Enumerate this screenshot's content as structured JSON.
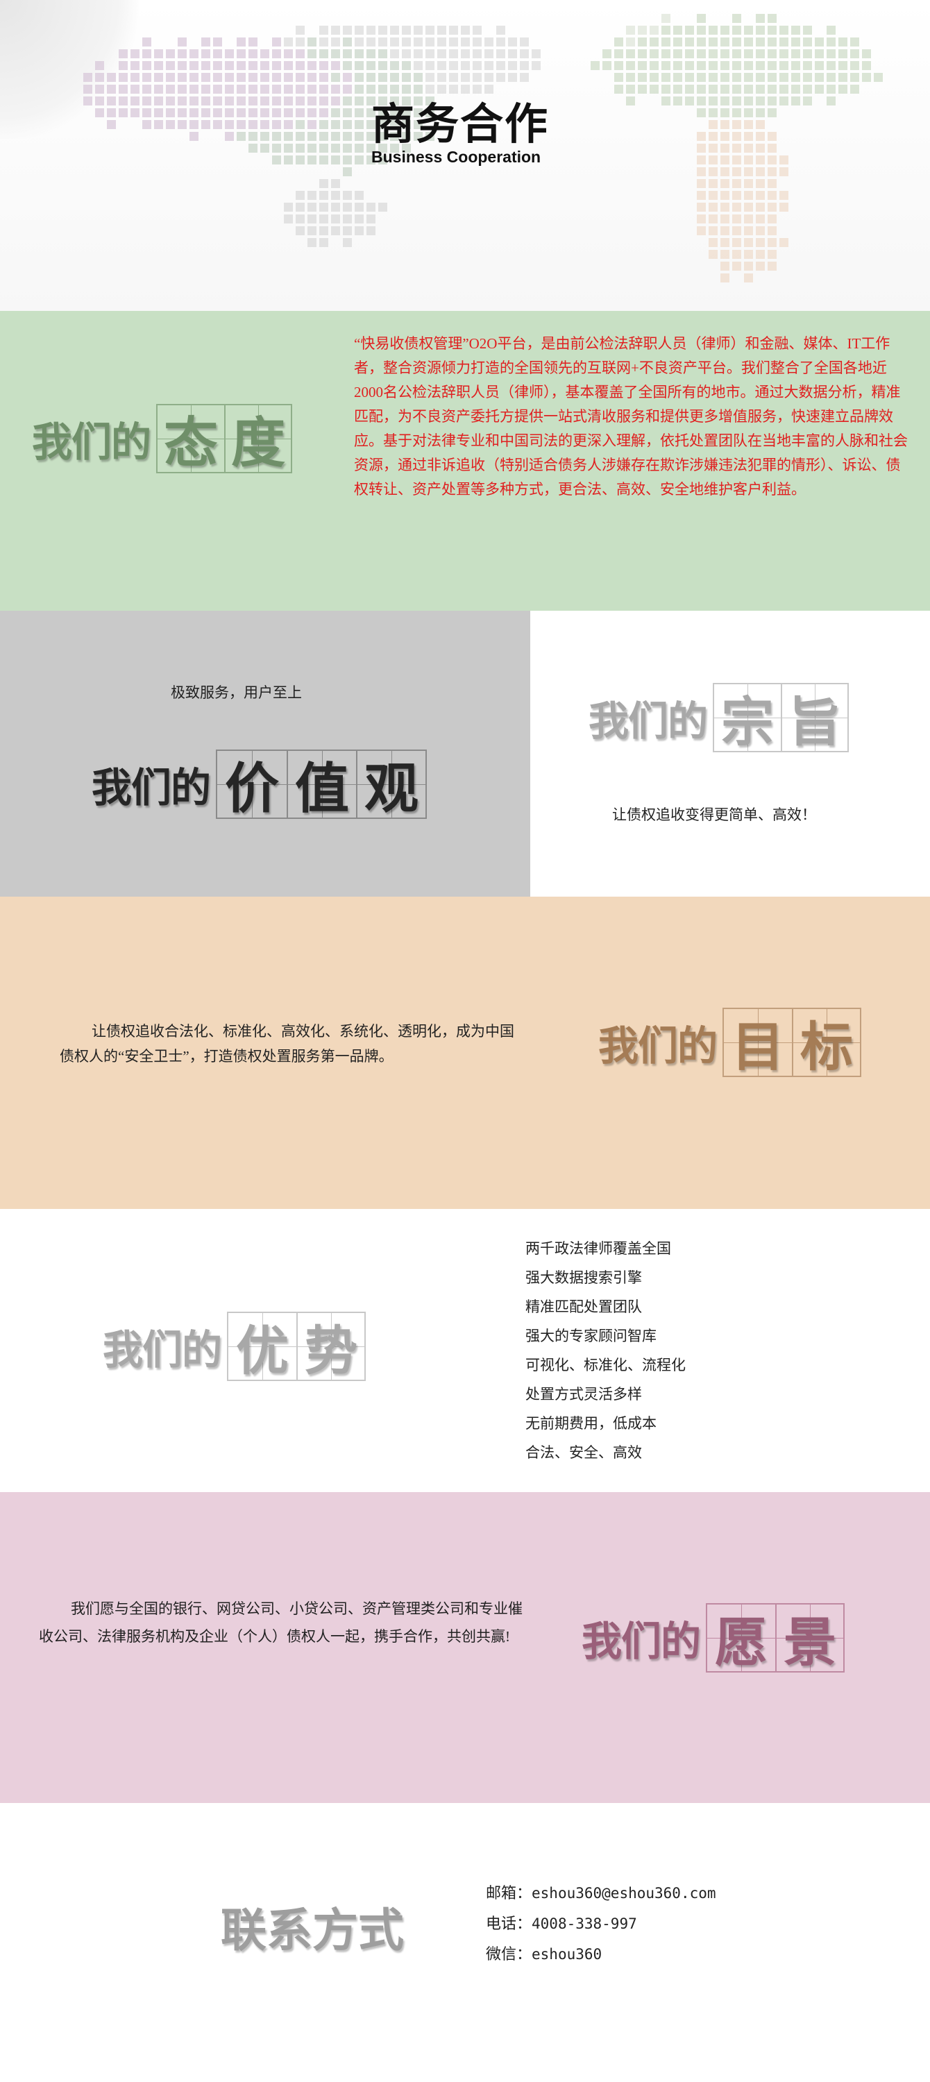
{
  "colors": {
    "green_bg": "#c8e0c4",
    "grey_bg": "#c9c9c9",
    "peach_bg": "#f2d8bc",
    "pink_bg": "#e9cfdc",
    "green_heading": "#6f8f69",
    "dark_heading": "#262626",
    "light_heading": "#a8a8a8",
    "tan_heading": "#a57c55",
    "mauve_heading": "#9a5f79",
    "red_text": "#e02020"
  },
  "hero": {
    "title": "商务合作",
    "subtitle": "Business Cooperation"
  },
  "attitude": {
    "prefix": "我们的",
    "word": [
      "态",
      "度"
    ],
    "text": "“快易收债权管理”O2O平台，是由前公检法辞职人员（律师）和金融、媒体、IT工作者，整合资源倾力打造的全国领先的互联网+不良资产平台。我们整合了全国各地近2000名公检法辞职人员（律师），基本覆盖了全国所有的地市。通过大数据分析，精准匹配，为不良资产委托方提供一站式清收服务和提供更多增值服务，快速建立品牌效应。基于对法律专业和中国司法的更深入理解，依托处置团队在当地丰富的人脉和社会资源，通过非诉追收（特别适合债务人涉嫌存在欺诈涉嫌违法犯罪的情形）、诉讼、债权转让、资产处置等多种方式，更合法、高效、安全地维护客户利益。"
  },
  "values": {
    "tagline": "极致服务，用户至上",
    "prefix": "我们的",
    "word": [
      "价",
      "值",
      "观"
    ]
  },
  "purpose": {
    "prefix": "我们的",
    "word": [
      "宗",
      "旨"
    ],
    "text": "让债权追收变得更简单、高效！"
  },
  "goal": {
    "prefix": "我们的",
    "word": [
      "目",
      "标"
    ],
    "text": "让债权追收合法化、标准化、高效化、系统化、透明化，成为中国债权人的“安全卫士”，打造债权处置服务第一品牌。"
  },
  "advantage": {
    "prefix": "我们的",
    "word": [
      "优",
      "势"
    ],
    "items": [
      "两千政法律师覆盖全国",
      "强大数据搜索引擎",
      "精准匹配处置团队",
      "强大的专家顾问智库",
      "可视化、标准化、流程化",
      "处置方式灵活多样",
      "无前期费用，低成本",
      "合法、安全、高效"
    ]
  },
  "vision": {
    "prefix": "我们的",
    "word": [
      "愿",
      "景"
    ],
    "text": "我们愿与全国的银行、网贷公司、小贷公司、资产管理类公司和专业催收公司、法律服务机构及企业（个人）债权人一起，携手合作，共创共赢!"
  },
  "contact": {
    "title": "联系方式",
    "email_label": "邮箱：",
    "email": "eshou360@eshou360.com",
    "phone_label": "电话：",
    "phone": "4008-338-997",
    "wechat_label": "微信：",
    "wechat": "eshou360"
  }
}
